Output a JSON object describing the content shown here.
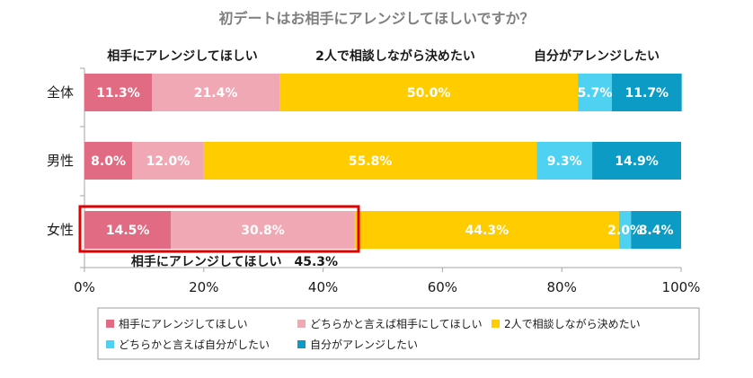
{
  "chart_data": {
    "type": "bar",
    "orientation": "horizontal",
    "stacked": true,
    "title": "初デートはお相手にアレンジしてほしいですか？",
    "categories": [
      "全体",
      "男性",
      "女性"
    ],
    "series": [
      {
        "name": "相手にアレンジしてほしい",
        "color": "#e06b82",
        "values": [
          11.3,
          8.0,
          14.5
        ],
        "labels": [
          "11.3%",
          "8.0%",
          "14.5%"
        ]
      },
      {
        "name": "どちらかと言えば相手にしてほしい",
        "color": "#efa8b4",
        "values": [
          21.4,
          12.0,
          30.8
        ],
        "labels": [
          "21.4%",
          "12.0%",
          "30.8%"
        ]
      },
      {
        "name": "2人で相談しながら決めたい",
        "color": "#ffcc00",
        "values": [
          50.0,
          55.8,
          44.3
        ],
        "labels": [
          "50.0%",
          "55.8%",
          "44.3%"
        ]
      },
      {
        "name": "どちらかと言えば自分がしたい",
        "color": "#4fd1f2",
        "values": [
          5.7,
          9.3,
          2.0
        ],
        "labels": [
          "5.7%",
          "9.3%",
          "2.0%"
        ]
      },
      {
        "name": "自分がアレンジしたい",
        "color": "#0b9bc4",
        "values": [
          11.7,
          14.9,
          8.4
        ],
        "labels": [
          "11.7%",
          "14.9%",
          "8.4%"
        ]
      }
    ],
    "xlim": [
      0,
      100
    ],
    "xticks": [
      "0%",
      "20%",
      "40%",
      "60%",
      "80%",
      "100%"
    ],
    "legend_position": "bottom",
    "annotations": {
      "top_left": "相手にアレンジしてほしい",
      "top_middle": "2人で相談しながら決めたい",
      "top_right": "自分がアレンジしたい",
      "highlight_label": "相手にアレンジしてほしい　45.3%",
      "highlight_color": "#e00000"
    }
  }
}
